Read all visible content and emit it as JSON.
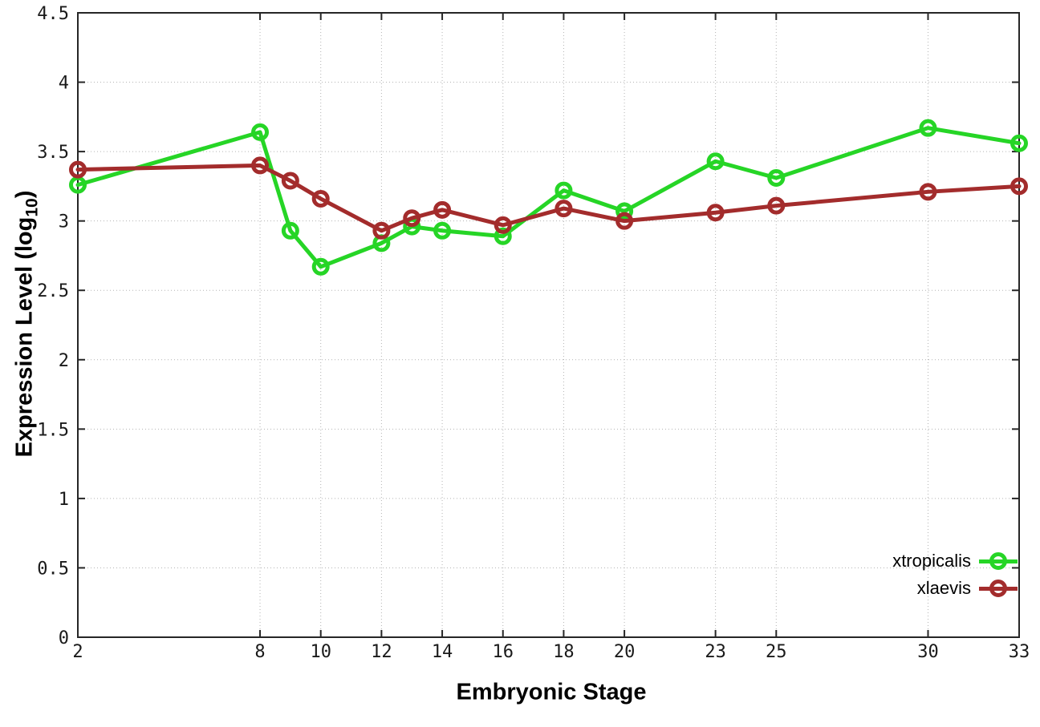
{
  "chart_data": {
    "type": "line",
    "title": "",
    "xlabel": "Embryonic Stage",
    "ylabel": "Expression Level (log10)",
    "ylabel_parts": {
      "pre": "Expression Level (log",
      "sub": "10",
      "post": ")"
    },
    "xlim": [
      2,
      33
    ],
    "ylim": [
      0,
      4.5
    ],
    "grid": true,
    "marker": "open-circle",
    "legend_position": "bottom-right",
    "x": [
      2,
      8,
      9,
      10,
      12,
      13,
      14,
      16,
      18,
      20,
      23,
      25,
      30,
      33
    ],
    "series": [
      {
        "name": "xtropicalis",
        "color": "#26d526",
        "values": [
          3.26,
          3.64,
          2.93,
          2.67,
          2.84,
          2.96,
          2.93,
          2.89,
          3.22,
          3.07,
          3.43,
          3.31,
          3.67,
          3.56
        ]
      },
      {
        "name": "xlaevis",
        "color": "#a32c2c",
        "values": [
          3.37,
          3.4,
          3.29,
          3.16,
          2.93,
          3.02,
          3.08,
          2.97,
          3.09,
          3.0,
          3.06,
          3.11,
          3.21,
          3.25
        ]
      }
    ],
    "xticks": {
      "values": [
        2,
        8,
        10,
        12,
        14,
        16,
        18,
        20,
        23,
        25,
        30,
        33
      ],
      "labels": [
        "2",
        "8",
        "10",
        "12",
        "14",
        "16",
        "18",
        "20",
        "23",
        "25",
        "30",
        "33"
      ]
    },
    "yticks": {
      "values": [
        0,
        0.5,
        1,
        1.5,
        2,
        2.5,
        3,
        3.5,
        4,
        4.5
      ],
      "labels": [
        "0",
        "0.5",
        "1",
        "1.5",
        "2",
        "2.5",
        "3",
        "3.5",
        "4",
        "4.5"
      ]
    },
    "colors": {
      "border": "#262626",
      "grid": "#b3b3b3",
      "tick_text": "#1a1a1a"
    }
  }
}
